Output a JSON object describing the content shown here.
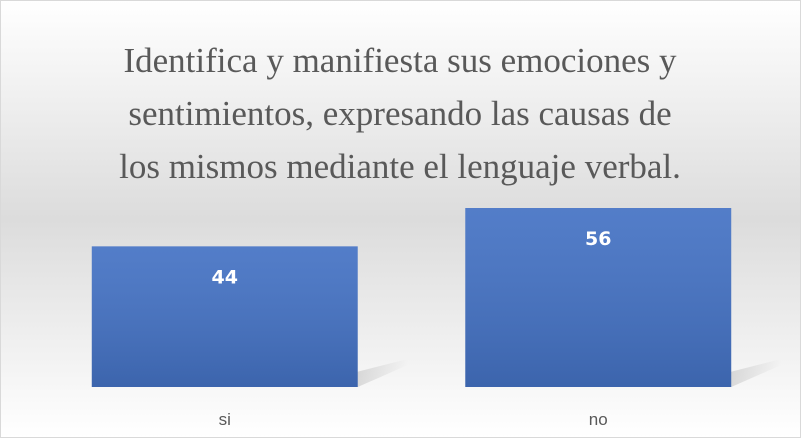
{
  "chart_data": {
    "type": "bar",
    "title": [
      "Identifica y manifiesta sus emociones y",
      "sentimientos, expresando las causas de",
      "los mismos mediante el lenguaje verbal."
    ],
    "categories": [
      "si",
      "no"
    ],
    "values": [
      44,
      56
    ],
    "color": "#4472c4"
  }
}
